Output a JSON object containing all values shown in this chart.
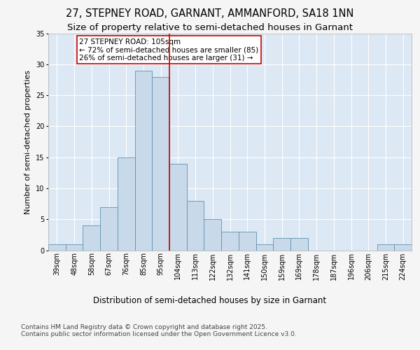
{
  "title": "27, STEPNEY ROAD, GARNANT, AMMANFORD, SA18 1NN",
  "subtitle": "Size of property relative to semi-detached houses in Garnant",
  "xlabel": "Distribution of semi-detached houses by size in Garnant",
  "ylabel": "Number of semi-detached properties",
  "bin_labels": [
    "39sqm",
    "48sqm",
    "58sqm",
    "67sqm",
    "76sqm",
    "85sqm",
    "95sqm",
    "104sqm",
    "113sqm",
    "122sqm",
    "132sqm",
    "141sqm",
    "150sqm",
    "159sqm",
    "169sqm",
    "178sqm",
    "187sqm",
    "196sqm",
    "206sqm",
    "215sqm",
    "224sqm"
  ],
  "bin_counts": [
    1,
    1,
    4,
    7,
    15,
    29,
    28,
    14,
    8,
    5,
    3,
    3,
    1,
    2,
    2,
    0,
    0,
    0,
    0,
    1,
    1
  ],
  "bar_color": "#c8daea",
  "bar_edge_color": "#6090b0",
  "property_line_color": "#cc0000",
  "annotation_text": "27 STEPNEY ROAD: 105sqm\n← 72% of semi-detached houses are smaller (85)\n26% of semi-detached houses are larger (31) →",
  "annotation_box_color": "#cc0000",
  "ylim": [
    0,
    35
  ],
  "yticks": [
    0,
    5,
    10,
    15,
    20,
    25,
    30,
    35
  ],
  "background_color": "#dde8f5",
  "grid_color": "#ffffff",
  "fig_facecolor": "#f5f5f5",
  "footer_text": "Contains HM Land Registry data © Crown copyright and database right 2025.\nContains public sector information licensed under the Open Government Licence v3.0.",
  "title_fontsize": 10.5,
  "subtitle_fontsize": 9.5,
  "xlabel_fontsize": 8.5,
  "ylabel_fontsize": 8,
  "tick_fontsize": 7,
  "annotation_fontsize": 7.5,
  "footer_fontsize": 6.5
}
